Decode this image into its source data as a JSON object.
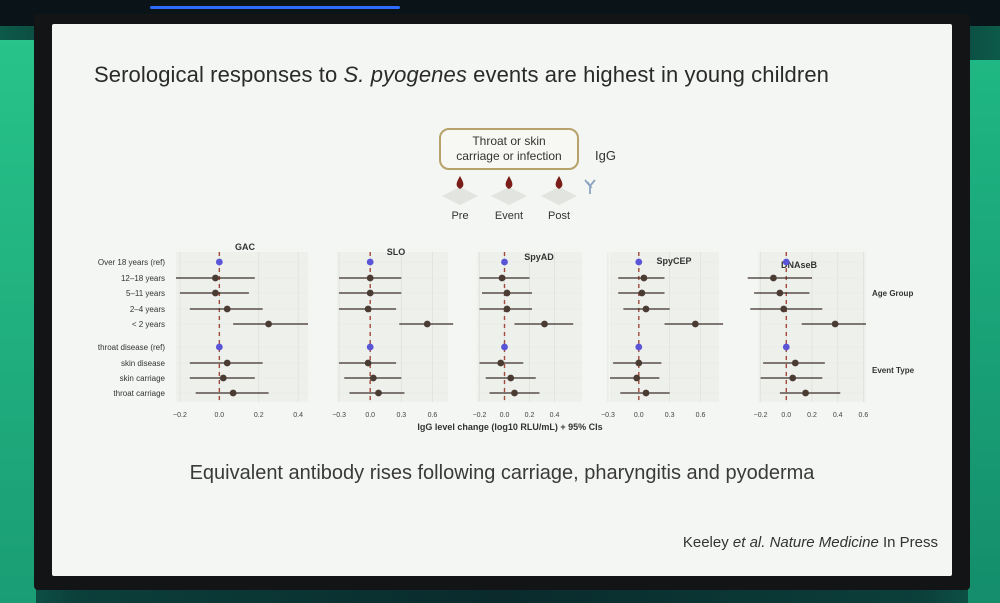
{
  "slide": {
    "title_pre": "Serological responses to ",
    "title_italic": "S. pyogenes",
    "title_post": " events are highest in young children",
    "subtitle": "Equivalent antibody rises following carriage, pharyngitis and pyoderma",
    "citation_authors": "Keeley ",
    "citation_etal": "et al.",
    "citation_journal": " Nature Medicine",
    "citation_status": " In Press"
  },
  "schematic": {
    "box_line1": "Throat or skin",
    "box_line2": "carriage or infection",
    "igg_label": "IgG",
    "timepoints": [
      "Pre",
      "Event",
      "Post"
    ]
  },
  "colors": {
    "point": "#4a3b33",
    "reference_point": "#5a55d6",
    "ci_line": "#3a2e28",
    "ref_line": "#a04a3a",
    "drop": "#7a1e1a",
    "box_border": "#b6a26a"
  },
  "chart_data": {
    "type": "forest",
    "xlabel": "IgG level change (log10 RLU/mL) + 95% CIs",
    "rows": [
      "Over 18 years (ref)",
      "12–18 years",
      "5–11 years",
      "2–4 years",
      "< 2 years",
      "throat disease (ref)",
      "skin disease",
      "skin carriage",
      "throat carriage"
    ],
    "groups": [
      {
        "label": "Age Group",
        "rows": [
          0,
          1,
          2,
          3,
          4
        ]
      },
      {
        "label": "Event Type",
        "rows": [
          5,
          6,
          7,
          8
        ]
      }
    ],
    "panels": [
      {
        "title": "GAC",
        "xlim": [
          -0.22,
          0.45
        ],
        "ticks": [
          -0.2,
          0.0,
          0.2,
          0.4
        ],
        "tick_labels": [
          "−0.2",
          "0.0",
          "0.2",
          "0.4"
        ],
        "estimates": [
          0.0,
          -0.02,
          -0.02,
          0.04,
          0.25,
          0.0,
          0.04,
          0.02,
          0.07
        ],
        "ci_low": [
          0.0,
          -0.22,
          -0.2,
          -0.15,
          0.07,
          0.0,
          -0.15,
          -0.15,
          -0.12
        ],
        "ci_high": [
          0.0,
          0.18,
          0.15,
          0.22,
          0.45,
          0.0,
          0.22,
          0.18,
          0.25
        ],
        "reference_rows": [
          0,
          5
        ]
      },
      {
        "title": "SLO",
        "xlim": [
          -0.32,
          0.75
        ],
        "ticks": [
          -0.3,
          0.0,
          0.3,
          0.6
        ],
        "tick_labels": [
          "−0.3",
          "0.0",
          "0.3",
          "0.6"
        ],
        "estimates": [
          0.0,
          0.0,
          0.0,
          -0.02,
          0.55,
          0.0,
          -0.02,
          0.03,
          0.08
        ],
        "ci_low": [
          0.0,
          -0.3,
          -0.3,
          -0.3,
          0.28,
          0.0,
          -0.3,
          -0.25,
          -0.2
        ],
        "ci_high": [
          0.0,
          0.3,
          0.3,
          0.25,
          0.8,
          0.0,
          0.25,
          0.3,
          0.33
        ],
        "reference_rows": [
          0,
          5
        ]
      },
      {
        "title": "SpyAD",
        "xlim": [
          -0.22,
          0.62
        ],
        "ticks": [
          -0.2,
          0.0,
          0.2,
          0.4
        ],
        "tick_labels": [
          "−0.2",
          "0.0",
          "0.2",
          "0.4"
        ],
        "estimates": [
          0.0,
          -0.02,
          0.02,
          0.02,
          0.32,
          0.0,
          -0.03,
          0.05,
          0.08
        ],
        "ci_low": [
          0.0,
          -0.2,
          -0.18,
          -0.2,
          0.08,
          0.0,
          -0.2,
          -0.15,
          -0.12
        ],
        "ci_high": [
          0.0,
          0.2,
          0.22,
          0.22,
          0.55,
          0.0,
          0.15,
          0.25,
          0.28
        ],
        "reference_rows": [
          0,
          5
        ]
      },
      {
        "title": "SpyCEP",
        "xlim": [
          -0.28,
          0.78
        ],
        "ticks": [
          -0.3,
          0.0,
          0.3,
          0.6
        ],
        "tick_labels": [
          "−0.3",
          "0.0",
          "0.3",
          "0.6"
        ],
        "estimates": [
          0.0,
          0.05,
          0.03,
          0.07,
          0.55,
          0.0,
          0.0,
          -0.02,
          0.07
        ],
        "ci_low": [
          0.0,
          -0.2,
          -0.2,
          -0.15,
          0.25,
          0.0,
          -0.25,
          -0.28,
          -0.18
        ],
        "ci_high": [
          0.0,
          0.25,
          0.25,
          0.3,
          0.82,
          0.0,
          0.22,
          0.2,
          0.3
        ],
        "reference_rows": [
          0,
          5
        ]
      },
      {
        "title": "DNAseB",
        "xlim": [
          -0.22,
          0.62
        ],
        "ticks": [
          -0.2,
          0.0,
          0.2,
          0.4,
          0.6
        ],
        "tick_labels": [
          "−0.2",
          "0.0",
          "0.2",
          "0.4",
          "0.6"
        ],
        "estimates": [
          0.0,
          -0.1,
          -0.05,
          -0.02,
          0.38,
          0.0,
          0.07,
          0.05,
          0.15
        ],
        "ci_low": [
          0.0,
          -0.3,
          -0.25,
          -0.28,
          0.12,
          0.0,
          -0.18,
          -0.2,
          -0.05
        ],
        "ci_high": [
          0.0,
          0.2,
          0.18,
          0.28,
          0.62,
          0.0,
          0.3,
          0.28,
          0.42
        ],
        "reference_rows": [
          0,
          5
        ]
      }
    ]
  }
}
